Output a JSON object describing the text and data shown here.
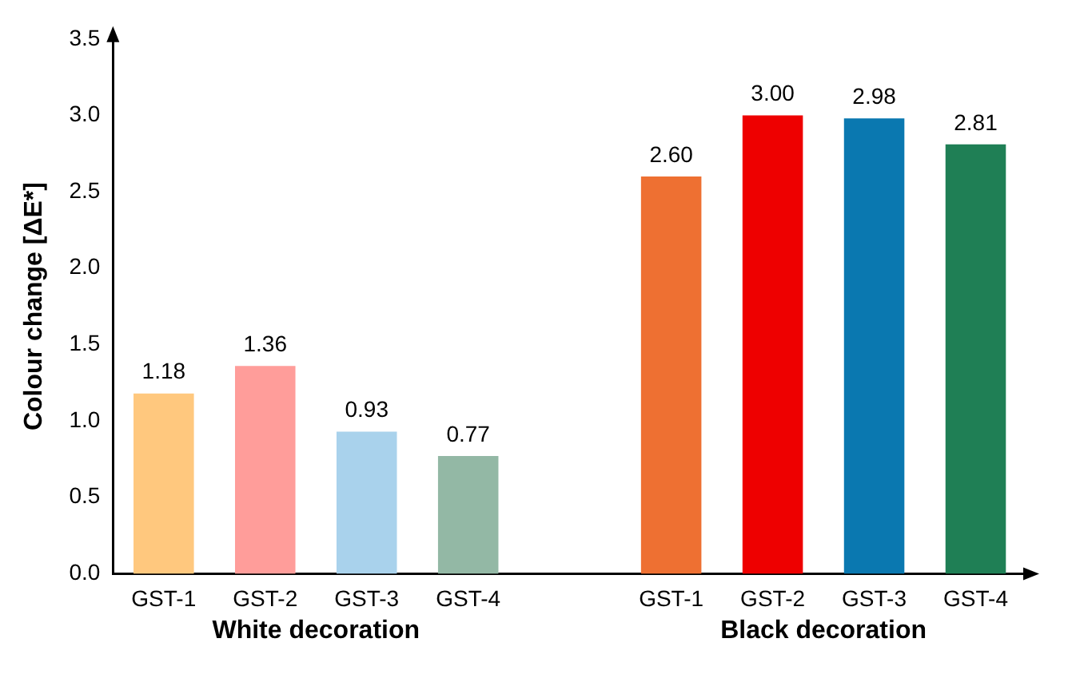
{
  "chart_data": {
    "type": "bar",
    "ylabel": "Colour change [ΔE*]",
    "categories": [
      "GST-1",
      "GST-2",
      "GST-3",
      "GST-4",
      null,
      "GST-1",
      "GST-2",
      "GST-3",
      "GST-4"
    ],
    "values": [
      1.18,
      1.36,
      0.93,
      0.77,
      null,
      2.6,
      3.0,
      2.98,
      2.81
    ],
    "value_labels": [
      "1.18",
      "1.36",
      "0.93",
      "0.77",
      null,
      "2.60",
      "3.00",
      "2.98",
      "2.81"
    ],
    "colors": [
      "#ffc87e",
      "#ff9d9a",
      "#a9d2ec",
      "#93b8a5",
      "#ffffff",
      "#ee7032",
      "#ee0000",
      "#0a78b0",
      "#1f7f55"
    ],
    "ylim": [
      0,
      3.5
    ],
    "yticks": [
      {
        "value": 0,
        "label": "0.0"
      },
      {
        "value": 0.5,
        "label": "0.5"
      },
      {
        "value": 1,
        "label": "1.0"
      },
      {
        "value": 1.5,
        "label": "1.5"
      },
      {
        "value": 2,
        "label": "2.0"
      },
      {
        "value": 2.5,
        "label": "2.5"
      },
      {
        "value": 3,
        "label": "3.0"
      },
      {
        "value": 3.5,
        "label": "3.5"
      }
    ],
    "annotations": [
      "White decoration",
      "Black decoration"
    ],
    "grid": false,
    "legend": false
  }
}
